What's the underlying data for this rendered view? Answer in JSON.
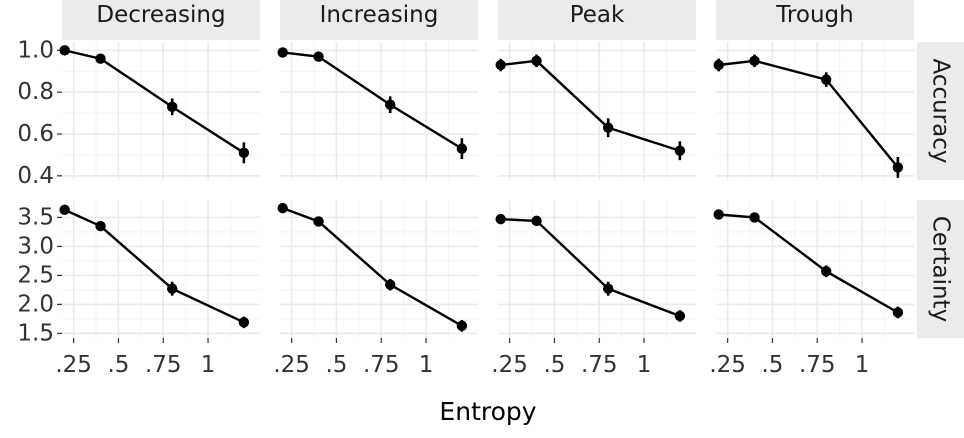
{
  "chart_data": {
    "type": "line",
    "xlabel": "Entropy",
    "ylabel": "",
    "x_ticks": [
      {
        "value": 0.25,
        "label": ".25"
      },
      {
        "value": 0.5,
        "label": ".5"
      },
      {
        "value": 0.75,
        "label": ".75"
      },
      {
        "value": 1.0,
        "label": "1"
      }
    ],
    "x_minor": [
      0.375,
      0.625,
      0.875,
      1.125
    ],
    "xlim": [
      0.185,
      1.29
    ],
    "columns": [
      "Decreasing",
      "Increasing",
      "Peak",
      "Trough"
    ],
    "rows": [
      {
        "label": "Accuracy",
        "ylim": [
          0.38,
          1.04
        ],
        "y_ticks": [
          {
            "value": 0.4,
            "label": "0.4"
          },
          {
            "value": 0.6,
            "label": "0.6"
          },
          {
            "value": 0.8,
            "label": "0.8"
          },
          {
            "value": 1.0,
            "label": "1.0"
          }
        ],
        "y_minor": [
          0.5,
          0.7,
          0.9
        ]
      },
      {
        "label": "Certainty",
        "ylim": [
          1.42,
          3.8
        ],
        "y_ticks": [
          {
            "value": 1.5,
            "label": "1.5"
          },
          {
            "value": 2.0,
            "label": "2.0"
          },
          {
            "value": 2.5,
            "label": "2.5"
          },
          {
            "value": 3.0,
            "label": "3.0"
          },
          {
            "value": 3.5,
            "label": "3.5"
          }
        ],
        "y_minor": [
          1.75,
          2.25,
          2.75,
          3.25
        ]
      }
    ],
    "x": [
      0.2,
      0.4,
      0.8,
      1.2
    ],
    "panels": [
      {
        "row": "Accuracy",
        "column": "Decreasing",
        "values": [
          1.0,
          0.96,
          0.73,
          0.51
        ],
        "errors": [
          0.01,
          0.02,
          0.04,
          0.05
        ]
      },
      {
        "row": "Accuracy",
        "column": "Increasing",
        "values": [
          0.99,
          0.97,
          0.74,
          0.53
        ],
        "errors": [
          0.01,
          0.02,
          0.04,
          0.05
        ]
      },
      {
        "row": "Accuracy",
        "column": "Peak",
        "values": [
          0.93,
          0.95,
          0.63,
          0.52
        ],
        "errors": [
          0.03,
          0.03,
          0.045,
          0.045
        ]
      },
      {
        "row": "Accuracy",
        "column": "Trough",
        "values": [
          0.93,
          0.95,
          0.86,
          0.44
        ],
        "errors": [
          0.03,
          0.03,
          0.035,
          0.05
        ]
      },
      {
        "row": "Certainty",
        "column": "Decreasing",
        "values": [
          3.63,
          3.35,
          2.27,
          1.69
        ],
        "errors": [
          0.05,
          0.08,
          0.12,
          0.1
        ]
      },
      {
        "row": "Certainty",
        "column": "Increasing",
        "values": [
          3.66,
          3.43,
          2.34,
          1.63
        ],
        "errors": [
          0.05,
          0.08,
          0.1,
          0.1
        ]
      },
      {
        "row": "Certainty",
        "column": "Peak",
        "values": [
          3.47,
          3.44,
          2.27,
          1.8
        ],
        "errors": [
          0.05,
          0.07,
          0.12,
          0.1
        ]
      },
      {
        "row": "Certainty",
        "column": "Trough",
        "values": [
          3.55,
          3.5,
          2.57,
          1.86
        ],
        "errors": [
          0.05,
          0.06,
          0.1,
          0.1
        ]
      }
    ],
    "grid": true,
    "legend": "none"
  }
}
